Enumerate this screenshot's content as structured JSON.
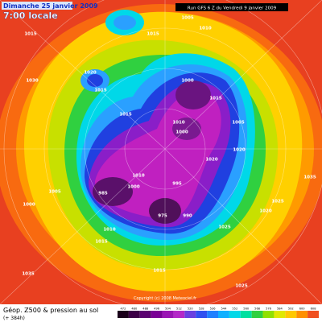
{
  "header": {
    "date": "Dimanche 25 janvier 2009",
    "time": "7:00 locale",
    "run": "Run GFS 6 Z du Vendredi 9 janvier 2009"
  },
  "footer": {
    "title": "Géop. Z500 & pression au sol",
    "lead": "(+ 384h)",
    "copyright": "Copyright (c) 2008 Meteociel.fr"
  },
  "scale": {
    "labels": [
      "472",
      "480",
      "488",
      "496",
      "504",
      "512",
      "520",
      "528",
      "536",
      "544",
      "552",
      "560",
      "568",
      "576",
      "584",
      "592",
      "600",
      "608"
    ]
  },
  "pressure_labels": [
    "1015",
    "1005",
    "1015",
    "1010",
    "1020",
    "1015",
    "1015",
    "1000",
    "1015",
    "1010",
    "1000",
    "1005",
    "1020",
    "1020",
    "1035",
    "1010",
    "1000",
    "985",
    "1005",
    "1000",
    "995",
    "975",
    "990",
    "1010",
    "1015",
    "1025",
    "1020",
    "1035",
    "1015",
    "1025",
    "1030",
    "1025"
  ]
}
